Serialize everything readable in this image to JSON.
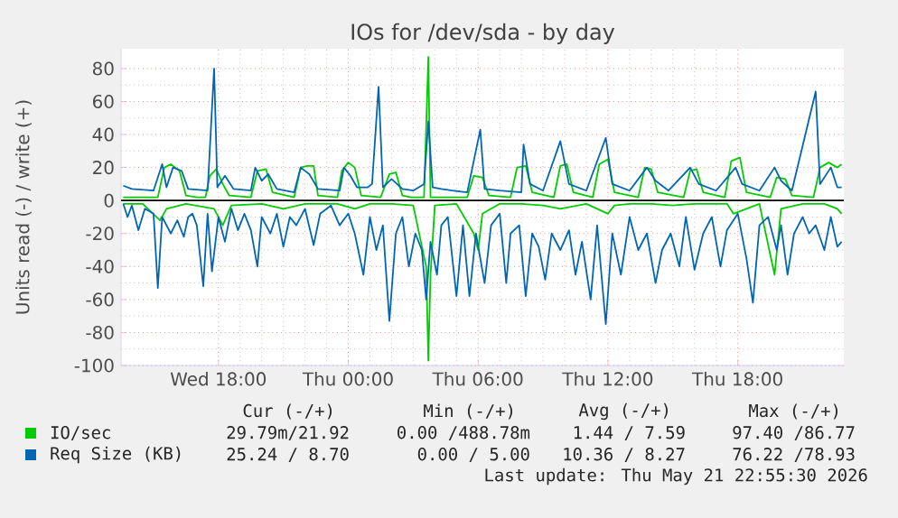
{
  "chart_data": {
    "type": "line",
    "title": "IOs for /dev/sda - by day",
    "ylabel": "Units read (-) / write (+)",
    "xlim": [
      "2026-05-20T13:30",
      "2026-05-21T22:54"
    ],
    "xticks": [
      {
        "value": "2026-05-20T18:00",
        "label": "Wed 18:00"
      },
      {
        "value": "2026-05-21T00:00",
        "label": "Thu 00:00"
      },
      {
        "value": "2026-05-21T06:00",
        "label": "Thu 06:00"
      },
      {
        "value": "2026-05-21T12:00",
        "label": "Thu 12:00"
      },
      {
        "value": "2026-05-21T18:00",
        "label": "Thu 18:00"
      }
    ],
    "ylim": [
      -100,
      92
    ],
    "yticks": [
      -100,
      -80,
      -60,
      -40,
      -20,
      0,
      20,
      40,
      60,
      80
    ],
    "grid": true,
    "legend": "bottom",
    "ref_lines": [
      {
        "axis": "y",
        "value": 0,
        "color": "#000000"
      }
    ],
    "annotations": [
      "Cur (-/+)",
      "Min (-/+)",
      "Avg (-/+)",
      "Max (-/+)",
      "29.79m/21.92",
      "0.00 /488.78m",
      "1.44 / 7.59",
      "97.40 /86.77",
      "25.24 / 8.70",
      "0.00 / 5.00",
      "10.36 / 8.27",
      "76.22 /78.93",
      "Last update: Thu May 21 22:55:30 2026"
    ],
    "series": [
      {
        "name": "IO/sec",
        "color": "#00cc00",
        "x": [
          "2026-05-20T13:36",
          "2026-05-20T14:30",
          "2026-05-20T15:12",
          "2026-05-20T15:30",
          "2026-05-20T15:48",
          "2026-05-20T16:12",
          "2026-05-20T16:30",
          "2026-05-20T17:00",
          "2026-05-20T17:24",
          "2026-05-20T17:36",
          "2026-05-20T17:54",
          "2026-05-20T18:12",
          "2026-05-20T18:30",
          "2026-05-20T19:30",
          "2026-05-20T19:48",
          "2026-05-20T20:12",
          "2026-05-20T20:30",
          "2026-05-20T21:30",
          "2026-05-20T21:48",
          "2026-05-20T22:06",
          "2026-05-20T22:24",
          "2026-05-20T22:36",
          "2026-05-20T23:30",
          "2026-05-20T23:42",
          "2026-05-21T00:00",
          "2026-05-21T00:18",
          "2026-05-21T00:36",
          "2026-05-21T01:30",
          "2026-05-21T01:54",
          "2026-05-21T02:12",
          "2026-05-21T02:30",
          "2026-05-21T02:54",
          "2026-05-21T03:30",
          "2026-05-21T03:42",
          "2026-05-21T03:48",
          "2026-05-21T04:30",
          "2026-05-21T05:30",
          "2026-05-21T05:48",
          "2026-05-21T06:12",
          "2026-05-21T06:30",
          "2026-05-21T07:30",
          "2026-05-21T07:48",
          "2026-05-21T08:12",
          "2026-05-21T08:30",
          "2026-05-21T09:30",
          "2026-05-21T09:48",
          "2026-05-21T10:06",
          "2026-05-21T10:24",
          "2026-05-21T11:18",
          "2026-05-21T11:36",
          "2026-05-21T12:00",
          "2026-05-21T12:18",
          "2026-05-21T13:24",
          "2026-05-21T13:42",
          "2026-05-21T14:00",
          "2026-05-21T14:18",
          "2026-05-21T15:30",
          "2026-05-21T15:48",
          "2026-05-21T16:06",
          "2026-05-21T16:24",
          "2026-05-21T17:24",
          "2026-05-21T17:42",
          "2026-05-21T18:06",
          "2026-05-21T18:24",
          "2026-05-21T19:30",
          "2026-05-21T19:48",
          "2026-05-21T20:12",
          "2026-05-21T20:30",
          "2026-05-21T21:30",
          "2026-05-21T21:48",
          "2026-05-21T22:12",
          "2026-05-21T22:36",
          "2026-05-21T22:48"
        ],
        "values": [
          2,
          2,
          2,
          20,
          22,
          18,
          3,
          2,
          2,
          15,
          19,
          10,
          3,
          2,
          18,
          19,
          5,
          2,
          20,
          21,
          21,
          3,
          2,
          18,
          23,
          20,
          3,
          2,
          16,
          17,
          3,
          2,
          2,
          87,
          2,
          2,
          2,
          15,
          14,
          3,
          2,
          20,
          21,
          5,
          2,
          21,
          22,
          5,
          2,
          22,
          25,
          5,
          2,
          20,
          19,
          5,
          2,
          18,
          19,
          5,
          2,
          24,
          26,
          5,
          2,
          14,
          13,
          3,
          2,
          20,
          23,
          20,
          22
        ]
      },
      {
        "name": null,
        "color": "#00cc00",
        "x": [
          "2026-05-20T13:36",
          "2026-05-20T14:30",
          "2026-05-20T15:18",
          "2026-05-20T15:36",
          "2026-05-20T16:30",
          "2026-05-20T17:48",
          "2026-05-20T18:12",
          "2026-05-20T18:36",
          "2026-05-20T20:00",
          "2026-05-20T21:00",
          "2026-05-20T22:00",
          "2026-05-20T23:30",
          "2026-05-21T00:18",
          "2026-05-21T01:00",
          "2026-05-21T02:00",
          "2026-05-21T03:00",
          "2026-05-21T03:36",
          "2026-05-21T03:42",
          "2026-05-21T03:48",
          "2026-05-21T04:00",
          "2026-05-21T05:00",
          "2026-05-21T05:48",
          "2026-05-21T06:00",
          "2026-05-21T06:12",
          "2026-05-21T07:00",
          "2026-05-21T08:00",
          "2026-05-21T09:00",
          "2026-05-21T09:48",
          "2026-05-21T11:00",
          "2026-05-21T12:00",
          "2026-05-21T12:18",
          "2026-05-21T13:00",
          "2026-05-21T14:00",
          "2026-05-21T15:00",
          "2026-05-21T16:00",
          "2026-05-21T17:30",
          "2026-05-21T17:48",
          "2026-05-21T19:00",
          "2026-05-21T19:42",
          "2026-05-21T20:00",
          "2026-05-21T21:00",
          "2026-05-21T22:00",
          "2026-05-21T22:36",
          "2026-05-21T22:48"
        ],
        "values": [
          -2,
          -2,
          -12,
          -5,
          -2,
          -5,
          -15,
          -3,
          -2,
          -5,
          -2,
          -2,
          -5,
          -2,
          -2,
          -3,
          -40,
          -97,
          -45,
          -3,
          -2,
          -20,
          -30,
          -8,
          -2,
          -2,
          -3,
          -5,
          -2,
          -8,
          -3,
          -2,
          -2,
          -3,
          -2,
          -2,
          -8,
          -2,
          -45,
          -5,
          -2,
          -2,
          -5,
          -8
        ]
      },
      {
        "name": "Req Size (KB)",
        "color": "#0066b3",
        "x": [
          "2026-05-20T13:36",
          "2026-05-20T14:00",
          "2026-05-20T15:00",
          "2026-05-20T15:24",
          "2026-05-20T15:36",
          "2026-05-20T15:54",
          "2026-05-20T16:18",
          "2026-05-20T16:36",
          "2026-05-20T17:30",
          "2026-05-20T17:48",
          "2026-05-20T17:57",
          "2026-05-20T18:18",
          "2026-05-20T18:42",
          "2026-05-20T19:30",
          "2026-05-20T19:42",
          "2026-05-20T20:00",
          "2026-05-20T20:18",
          "2026-05-20T20:42",
          "2026-05-20T21:30",
          "2026-05-20T21:48",
          "2026-05-20T22:12",
          "2026-05-20T22:36",
          "2026-05-20T23:36",
          "2026-05-20T23:48",
          "2026-05-21T00:06",
          "2026-05-21T00:24",
          "2026-05-21T00:54",
          "2026-05-21T01:06",
          "2026-05-21T01:24",
          "2026-05-21T01:36",
          "2026-05-21T02:00",
          "2026-05-21T02:30",
          "2026-05-21T03:00",
          "2026-05-21T03:30",
          "2026-05-21T03:42",
          "2026-05-21T03:54",
          "2026-05-21T04:18",
          "2026-05-21T04:48",
          "2026-05-21T05:30",
          "2026-05-21T06:06",
          "2026-05-21T06:18",
          "2026-05-21T07:00",
          "2026-05-21T08:00",
          "2026-05-21T08:06",
          "2026-05-21T08:24",
          "2026-05-21T09:00",
          "2026-05-21T09:48",
          "2026-05-21T10:12",
          "2026-05-21T11:00",
          "2026-05-21T11:54",
          "2026-05-21T12:12",
          "2026-05-21T13:00",
          "2026-05-21T13:48",
          "2026-05-21T14:12",
          "2026-05-21T14:48",
          "2026-05-21T15:48",
          "2026-05-21T16:12",
          "2026-05-21T17:00",
          "2026-05-21T17:54",
          "2026-05-21T18:12",
          "2026-05-21T19:00",
          "2026-05-21T19:42",
          "2026-05-21T20:00",
          "2026-05-21T20:30",
          "2026-05-21T21:36",
          "2026-05-21T21:48",
          "2026-05-21T22:18",
          "2026-05-21T22:36",
          "2026-05-21T22:48"
        ],
        "values": [
          9,
          7,
          6,
          22,
          8,
          20,
          18,
          7,
          6,
          80,
          8,
          15,
          7,
          6,
          20,
          12,
          16,
          7,
          5,
          20,
          16,
          7,
          6,
          20,
          15,
          8,
          8,
          10,
          69,
          8,
          13,
          7,
          6,
          10,
          48,
          8,
          7,
          6,
          5,
          43,
          7,
          6,
          5,
          34,
          10,
          6,
          36,
          10,
          6,
          38,
          10,
          6,
          20,
          12,
          6,
          20,
          10,
          6,
          20,
          10,
          6,
          20,
          12,
          6,
          66,
          10,
          20,
          8,
          8
        ]
      },
      {
        "name": null,
        "color": "#0066b3",
        "x": [
          "2026-05-20T13:36",
          "2026-05-20T13:48",
          "2026-05-20T14:00",
          "2026-05-20T14:18",
          "2026-05-20T14:36",
          "2026-05-20T15:00",
          "2026-05-20T15:12",
          "2026-05-20T15:24",
          "2026-05-20T15:48",
          "2026-05-20T16:06",
          "2026-05-20T16:24",
          "2026-05-20T16:36",
          "2026-05-20T16:48",
          "2026-05-20T17:00",
          "2026-05-20T17:18",
          "2026-05-20T17:30",
          "2026-05-20T17:42",
          "2026-05-20T18:00",
          "2026-05-20T18:18",
          "2026-05-20T18:36",
          "2026-05-20T18:54",
          "2026-05-20T19:12",
          "2026-05-20T19:30",
          "2026-05-20T19:48",
          "2026-05-20T20:00",
          "2026-05-20T20:24",
          "2026-05-20T20:42",
          "2026-05-20T21:00",
          "2026-05-20T21:18",
          "2026-05-20T21:36",
          "2026-05-20T22:00",
          "2026-05-20T22:24",
          "2026-05-20T22:42",
          "2026-05-20T23:12",
          "2026-05-20T23:36",
          "2026-05-21T00:00",
          "2026-05-21T00:18",
          "2026-05-21T00:42",
          "2026-05-21T01:00",
          "2026-05-21T01:18",
          "2026-05-21T01:36",
          "2026-05-21T01:54",
          "2026-05-21T02:12",
          "2026-05-21T02:30",
          "2026-05-21T02:48",
          "2026-05-21T03:06",
          "2026-05-21T03:24",
          "2026-05-21T03:36",
          "2026-05-21T03:48",
          "2026-05-21T04:06",
          "2026-05-21T04:18",
          "2026-05-21T04:36",
          "2026-05-21T05:00",
          "2026-05-21T05:18",
          "2026-05-21T05:36",
          "2026-05-21T05:54",
          "2026-05-21T06:18",
          "2026-05-21T06:36",
          "2026-05-21T07:00",
          "2026-05-21T07:18",
          "2026-05-21T07:30",
          "2026-05-21T07:54",
          "2026-05-21T08:12",
          "2026-05-21T08:30",
          "2026-05-21T08:48",
          "2026-05-21T09:06",
          "2026-05-21T09:24",
          "2026-05-21T09:48",
          "2026-05-21T10:12",
          "2026-05-21T10:30",
          "2026-05-21T10:48",
          "2026-05-21T11:12",
          "2026-05-21T11:30",
          "2026-05-21T11:54",
          "2026-05-21T12:12",
          "2026-05-21T12:36",
          "2026-05-21T13:00",
          "2026-05-21T13:24",
          "2026-05-21T13:48",
          "2026-05-21T14:12",
          "2026-05-21T14:30",
          "2026-05-21T14:54",
          "2026-05-21T15:18",
          "2026-05-21T15:36",
          "2026-05-21T16:00",
          "2026-05-21T16:24",
          "2026-05-21T16:48",
          "2026-05-21T17:12",
          "2026-05-21T17:30",
          "2026-05-21T18:00",
          "2026-05-21T18:24",
          "2026-05-21T18:42",
          "2026-05-21T19:00",
          "2026-05-21T19:24",
          "2026-05-21T19:48",
          "2026-05-21T20:00",
          "2026-05-21T20:18",
          "2026-05-21T20:36",
          "2026-05-21T21:00",
          "2026-05-21T21:18",
          "2026-05-21T21:36",
          "2026-05-21T22:00",
          "2026-05-21T22:18",
          "2026-05-21T22:36",
          "2026-05-21T22:48"
        ],
        "values": [
          -2,
          -10,
          -3,
          -18,
          -5,
          -8,
          -53,
          -10,
          -20,
          -12,
          -22,
          -10,
          -8,
          -15,
          -52,
          -8,
          -43,
          -10,
          -25,
          -5,
          -18,
          -8,
          -18,
          -40,
          -10,
          -20,
          -8,
          -28,
          -10,
          -15,
          -5,
          -27,
          -8,
          -3,
          -15,
          -8,
          -20,
          -45,
          -10,
          -30,
          -15,
          -73,
          -20,
          -10,
          -40,
          -20,
          -30,
          -60,
          -25,
          -45,
          -15,
          -10,
          -58,
          -15,
          -58,
          -20,
          -50,
          -15,
          -8,
          -50,
          -20,
          -15,
          -58,
          -20,
          -28,
          -48,
          -20,
          -30,
          -18,
          -45,
          -25,
          -60,
          -15,
          -75,
          -20,
          -45,
          -10,
          -30,
          -20,
          -50,
          -30,
          -20,
          -40,
          -10,
          -42,
          -20,
          -10,
          -40,
          -18,
          -8,
          -35,
          -62,
          -15,
          -10,
          -30,
          -15,
          -45,
          -20,
          -10,
          -20,
          -15,
          -30,
          -10,
          -28,
          -25
        ]
      }
    ]
  }
}
